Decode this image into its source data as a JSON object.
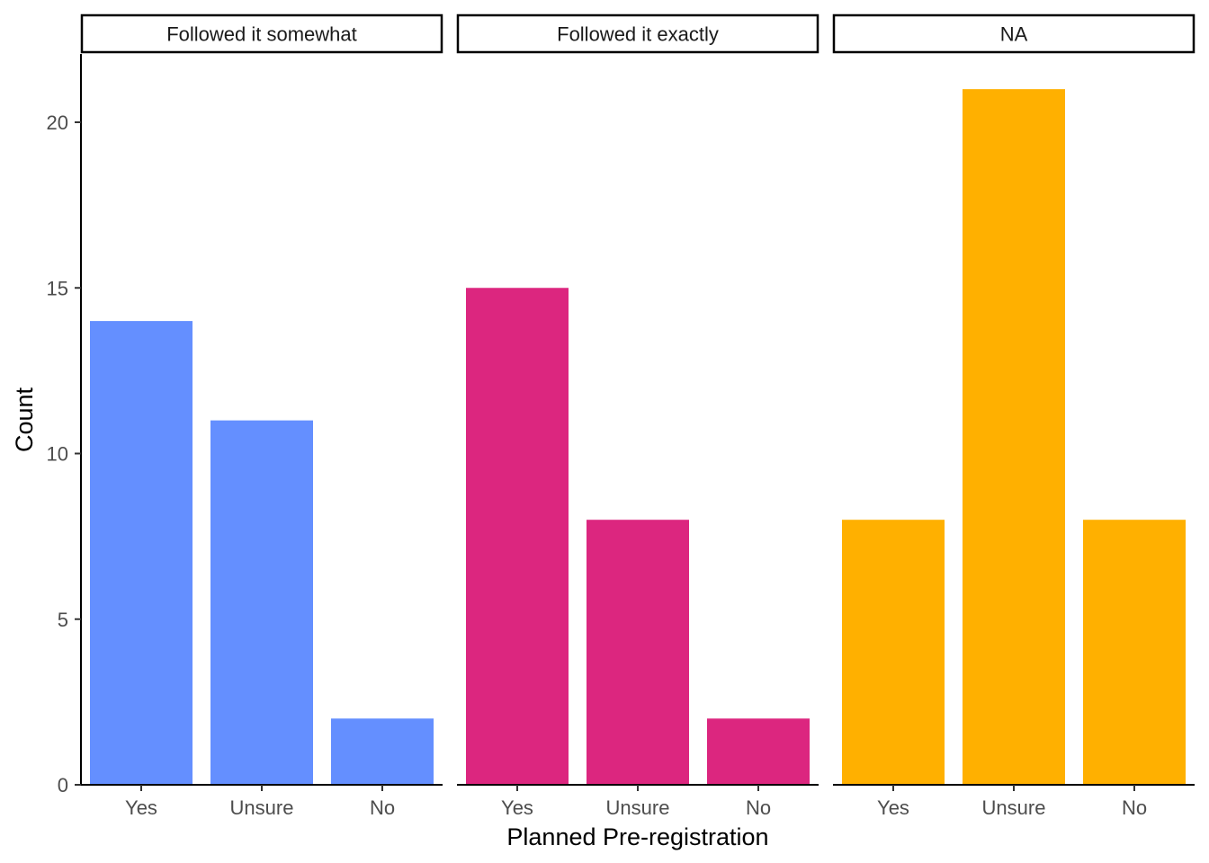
{
  "chart_data": {
    "type": "bar",
    "facet_by": "adherence",
    "categories": [
      "Yes",
      "Unsure",
      "No"
    ],
    "xlabel": "Planned Pre-registration",
    "ylabel": "Count",
    "ylim": [
      0,
      22
    ],
    "yticks": [
      0,
      5,
      10,
      15,
      20
    ],
    "grid": false,
    "legend": "none",
    "panels": [
      {
        "name": "Followed it somewhat",
        "color": "#648FFF",
        "values": [
          14,
          11,
          2
        ]
      },
      {
        "name": "Followed it exactly",
        "color": "#DC267F",
        "values": [
          15,
          8,
          2
        ]
      },
      {
        "name": "NA",
        "color": "#FFB000",
        "values": [
          8,
          21,
          8
        ]
      }
    ]
  }
}
